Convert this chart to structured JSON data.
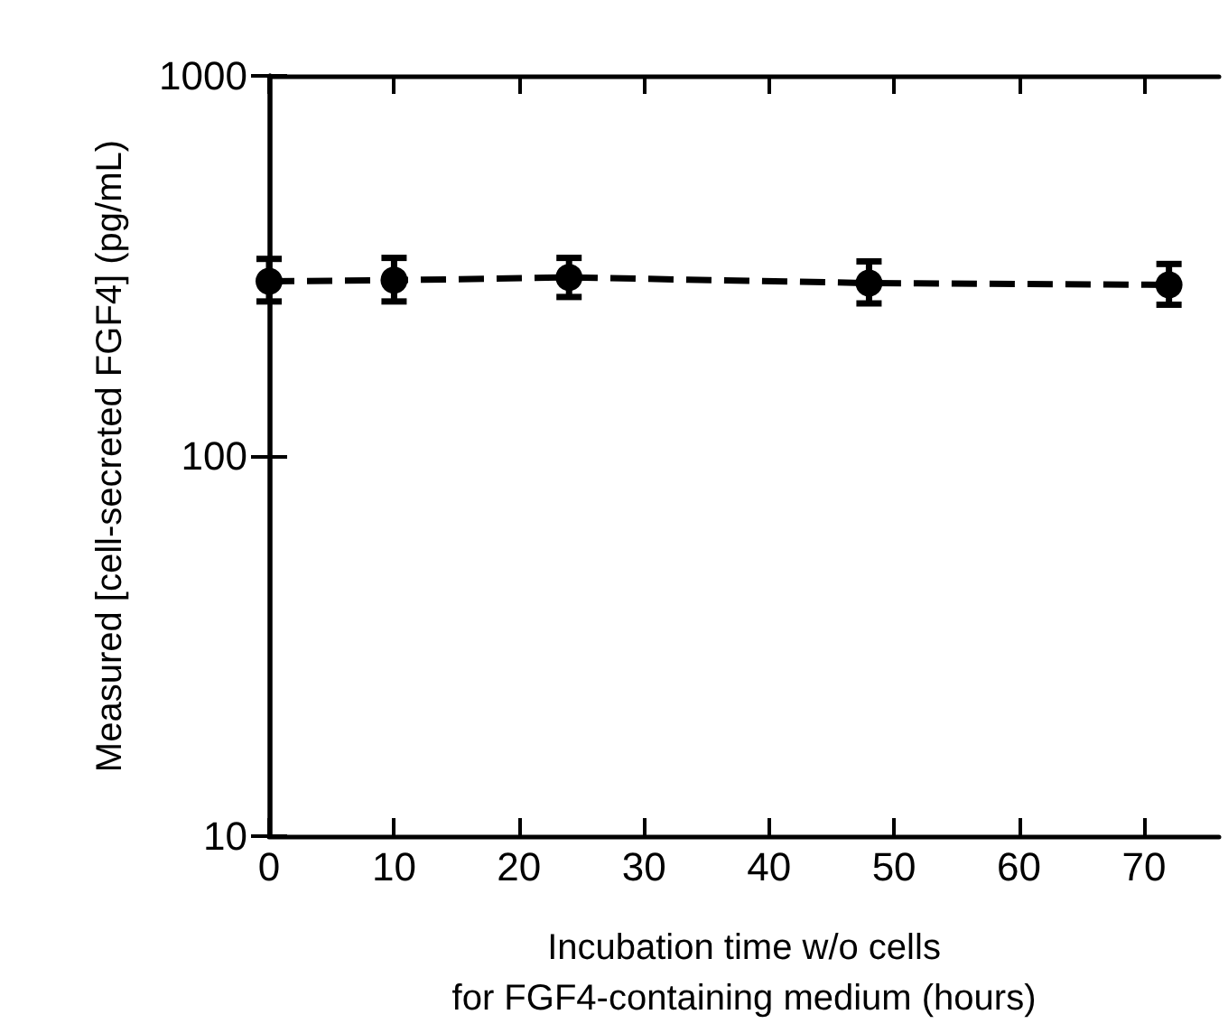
{
  "chart_data": {
    "type": "line",
    "xlabel": "Incubation time w/o cells\nfor FGF4-containing medium (hours)",
    "ylabel": "Measured [cell-secreted FGF4] (pg/mL)",
    "series": [
      {
        "color": "#000000",
        "x": [
          0,
          10,
          24,
          48,
          72
        ],
        "values": [
          288,
          290,
          295,
          285,
          282
        ],
        "errors": [
          [
            255,
            330
          ],
          [
            255,
            332
          ],
          [
            262,
            332
          ],
          [
            252,
            325
          ],
          [
            250,
            320
          ]
        ]
      }
    ],
    "xlim": [
      0,
      76
    ],
    "xticks": [
      0,
      10,
      20,
      30,
      40,
      50,
      60,
      70
    ],
    "ylim": [
      10,
      1000
    ],
    "yticks": [
      10,
      100,
      1000
    ],
    "log": "y",
    "marker": "circle",
    "line_style": "dashed"
  }
}
